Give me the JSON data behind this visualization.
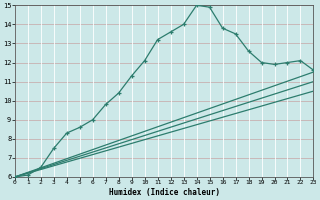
{
  "xlabel": "Humidex (Indice chaleur)",
  "bg_color": "#cce8e8",
  "grid_h_color": "#c8b0b0",
  "grid_v_color": "#ffffff",
  "line_color": "#2d7d6e",
  "xlim": [
    0,
    23
  ],
  "ylim": [
    6,
    15
  ],
  "xticks": [
    0,
    1,
    2,
    3,
    4,
    5,
    6,
    7,
    8,
    9,
    10,
    11,
    12,
    13,
    14,
    15,
    16,
    17,
    18,
    19,
    20,
    21,
    22,
    23
  ],
  "yticks": [
    6,
    7,
    8,
    9,
    10,
    11,
    12,
    13,
    14,
    15
  ],
  "line1_x": [
    0,
    1,
    2,
    3,
    4,
    5,
    6,
    7,
    8,
    9,
    10,
    11,
    12,
    13,
    14,
    15,
    16,
    17,
    18,
    19,
    20,
    21,
    22,
    23
  ],
  "line1_y": [
    6.0,
    6.1,
    6.5,
    7.5,
    8.3,
    8.6,
    9.0,
    9.8,
    10.4,
    11.3,
    12.1,
    13.2,
    13.6,
    14.0,
    15.0,
    14.9,
    13.8,
    13.5,
    12.6,
    12.0,
    11.9,
    12.0,
    12.1,
    11.6
  ],
  "line2_x": [
    0,
    23
  ],
  "line2_y": [
    6.0,
    11.5
  ],
  "line3_x": [
    0,
    23
  ],
  "line3_y": [
    6.0,
    11.0
  ],
  "line4_x": [
    0,
    23
  ],
  "line4_y": [
    6.0,
    10.5
  ]
}
